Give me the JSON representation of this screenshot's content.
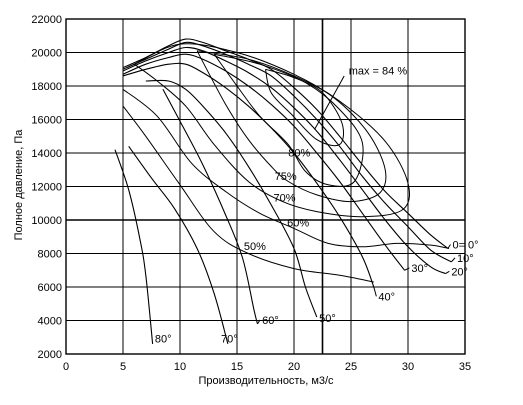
{
  "chart_data": {
    "type": "line",
    "title": "",
    "xlabel": "Производительность, м3/с",
    "ylabel": "Полное давление, Па",
    "xlim": [
      0,
      35
    ],
    "ylim": [
      2000,
      22000
    ],
    "x_ticks": [
      0,
      5,
      10,
      15,
      20,
      25,
      30,
      35
    ],
    "y_ticks": [
      2000,
      4000,
      6000,
      8000,
      10000,
      12000,
      14000,
      16000,
      18000,
      20000,
      22000
    ],
    "x_tick_labels": [
      "0",
      "5",
      "10",
      "15",
      "20",
      "25",
      "30",
      "35"
    ],
    "y_tick_labels": [
      "2000",
      "4000",
      "6000",
      "8000",
      "10000",
      "12000",
      "14000",
      "16000",
      "18000",
      "20000",
      "22000"
    ],
    "grid": true,
    "series": [
      {
        "name": "0= 0°",
        "label_at": [
          33.9,
          8300
        ],
        "points": [
          [
            5.0,
            19100
          ],
          [
            7.0,
            19700
          ],
          [
            9.0,
            20400
          ],
          [
            10.5,
            20800
          ],
          [
            12.0,
            20600
          ],
          [
            14.0,
            20100
          ],
          [
            16.0,
            19600
          ],
          [
            18.0,
            19000
          ],
          [
            20.0,
            17900
          ],
          [
            22.0,
            16600
          ],
          [
            24.0,
            15000
          ],
          [
            26.0,
            13300
          ],
          [
            28.0,
            11700
          ],
          [
            30.0,
            10400
          ],
          [
            32.0,
            9100
          ],
          [
            33.5,
            8300
          ]
        ]
      },
      {
        "name": "10°",
        "label_at": [
          34.3,
          7500
        ],
        "points": [
          [
            5.0,
            19000
          ],
          [
            7.0,
            19600
          ],
          [
            9.0,
            20200
          ],
          [
            10.5,
            20600
          ],
          [
            12.0,
            20400
          ],
          [
            14.0,
            19900
          ],
          [
            16.0,
            19300
          ],
          [
            18.0,
            18600
          ],
          [
            20.0,
            17400
          ],
          [
            22.0,
            16000
          ],
          [
            24.0,
            14400
          ],
          [
            26.0,
            12600
          ],
          [
            28.0,
            11000
          ],
          [
            30.0,
            9600
          ],
          [
            32.0,
            8200
          ],
          [
            33.8,
            7500
          ]
        ]
      },
      {
        "name": "20°",
        "label_at": [
          33.8,
          6700
        ],
        "points": [
          [
            5.0,
            18900
          ],
          [
            7.0,
            19500
          ],
          [
            9.0,
            20000
          ],
          [
            10.5,
            20300
          ],
          [
            12.0,
            20100
          ],
          [
            14.0,
            19500
          ],
          [
            16.0,
            18800
          ],
          [
            18.0,
            17900
          ],
          [
            20.0,
            16700
          ],
          [
            22.0,
            15300
          ],
          [
            24.0,
            13600
          ],
          [
            26.0,
            11800
          ],
          [
            28.0,
            10000
          ],
          [
            30.0,
            8400
          ],
          [
            32.0,
            7200
          ],
          [
            33.3,
            6800
          ]
        ]
      },
      {
        "name": "30°",
        "label_at": [
          30.3,
          6900
        ],
        "points": [
          [
            5.0,
            18700
          ],
          [
            7.0,
            19300
          ],
          [
            9.0,
            19700
          ],
          [
            10.5,
            19900
          ],
          [
            12.0,
            19600
          ],
          [
            14.0,
            18900
          ],
          [
            16.0,
            18000
          ],
          [
            18.0,
            16900
          ],
          [
            20.0,
            15600
          ],
          [
            22.0,
            14000
          ],
          [
            24.0,
            12300
          ],
          [
            26.0,
            10400
          ],
          [
            28.0,
            8500
          ],
          [
            29.7,
            7000
          ]
        ]
      },
      {
        "name": "40°",
        "label_at": [
          27.4,
          5200
        ],
        "points": [
          [
            5.0,
            18600
          ],
          [
            7.0,
            19000
          ],
          [
            9.0,
            19300
          ],
          [
            10.5,
            19300
          ],
          [
            12.0,
            18800
          ],
          [
            14.0,
            17900
          ],
          [
            16.0,
            16800
          ],
          [
            18.0,
            15500
          ],
          [
            20.0,
            14000
          ],
          [
            22.0,
            12200
          ],
          [
            24.0,
            10200
          ],
          [
            26.0,
            7800
          ],
          [
            27.0,
            6000
          ]
        ]
      },
      {
        "name": "50°",
        "label_at": [
          22.2,
          3900
        ],
        "points": [
          [
            7.0,
            18300
          ],
          [
            9.0,
            18300
          ],
          [
            10.5,
            17800
          ],
          [
            12.0,
            16800
          ],
          [
            14.0,
            15200
          ],
          [
            16.0,
            13200
          ],
          [
            18.0,
            10900
          ],
          [
            20.0,
            8300
          ],
          [
            21.0,
            6000
          ],
          [
            22.0,
            4200
          ]
        ]
      },
      {
        "name": "60°",
        "label_at": [
          17.2,
          3800
        ],
        "points": [
          [
            8.5,
            17800
          ],
          [
            10.0,
            15900
          ],
          [
            12.0,
            13300
          ],
          [
            14.0,
            10300
          ],
          [
            15.5,
            7700
          ],
          [
            16.5,
            4600
          ],
          [
            16.8,
            3800
          ]
        ]
      },
      {
        "name": "70°",
        "label_at": [
          13.6,
          2700
        ],
        "points": [
          [
            5.5,
            14400
          ],
          [
            7.5,
            12500
          ],
          [
            9.5,
            10700
          ],
          [
            11.5,
            8300
          ],
          [
            13.0,
            5600
          ],
          [
            14.2,
            2600
          ]
        ]
      },
      {
        "name": "80°",
        "label_at": [
          7.8,
          2700
        ],
        "points": [
          [
            4.3,
            14200
          ],
          [
            5.5,
            11800
          ],
          [
            6.5,
            8800
          ],
          [
            7.0,
            6700
          ],
          [
            7.6,
            2600
          ]
        ]
      }
    ],
    "efficiency_contours": [
      {
        "name": "max = 84 %",
        "label_at": [
          24.8,
          18700
        ],
        "leader": [
          [
            24.4,
            18600
          ],
          [
            21.8,
            15400
          ]
        ],
        "points": [
          [
            17.5,
            19000
          ],
          [
            20.0,
            18500
          ],
          [
            22.5,
            17600
          ],
          [
            24.2,
            15800
          ],
          [
            24.0,
            14500
          ],
          [
            22.0,
            14800
          ],
          [
            19.8,
            16300
          ],
          [
            18.0,
            17600
          ],
          [
            17.5,
            19000
          ]
        ]
      },
      {
        "name": "80%",
        "label_at": [
          19.5,
          13800
        ],
        "points": [
          [
            13.0,
            19900
          ],
          [
            17.0,
            19300
          ],
          [
            21.0,
            18200
          ],
          [
            24.0,
            16600
          ],
          [
            26.0,
            14600
          ],
          [
            25.3,
            12300
          ],
          [
            23.0,
            12100
          ],
          [
            21.0,
            12900
          ],
          [
            19.5,
            14500
          ],
          [
            17.0,
            16200
          ],
          [
            15.0,
            18000
          ],
          [
            13.0,
            19900
          ]
        ]
      },
      {
        "name": "75%",
        "label_at": [
          18.3,
          12400
        ],
        "points": [
          [
            11.5,
            20100
          ],
          [
            16.0,
            19600
          ],
          [
            20.0,
            18600
          ],
          [
            23.5,
            17300
          ],
          [
            26.5,
            15200
          ],
          [
            28.0,
            13000
          ],
          [
            27.5,
            11600
          ],
          [
            25.0,
            11100
          ],
          [
            22.0,
            11500
          ],
          [
            19.5,
            12300
          ],
          [
            18.0,
            13200
          ],
          [
            16.0,
            14800
          ],
          [
            14.0,
            16900
          ],
          [
            11.5,
            20100
          ]
        ]
      },
      {
        "name": "70%",
        "label_at": [
          18.2,
          11100
        ],
        "points": [
          [
            6.0,
            19300
          ],
          [
            10.0,
            20500
          ],
          [
            15.0,
            20000
          ],
          [
            20.0,
            18700
          ],
          [
            24.0,
            17100
          ],
          [
            28.0,
            14700
          ],
          [
            30.0,
            12200
          ],
          [
            29.5,
            10600
          ],
          [
            26.0,
            10200
          ],
          [
            22.0,
            10500
          ],
          [
            19.0,
            11100
          ],
          [
            16.0,
            12300
          ],
          [
            13.0,
            14500
          ],
          [
            10.5,
            16800
          ],
          [
            8.0,
            18300
          ],
          [
            6.0,
            19300
          ]
        ]
      },
      {
        "name": "60%",
        "label_at": [
          19.4,
          9600
        ],
        "points": [
          [
            5.0,
            17800
          ],
          [
            8.0,
            16200
          ],
          [
            11.0,
            13400
          ],
          [
            14.0,
            11700
          ],
          [
            17.0,
            10400
          ],
          [
            20.0,
            9500
          ],
          [
            23.0,
            8600
          ],
          [
            26.0,
            8400
          ],
          [
            29.0,
            8600
          ],
          [
            32.0,
            8500
          ],
          [
            33.6,
            8300
          ]
        ]
      },
      {
        "name": "50%",
        "label_at": [
          15.6,
          8200
        ],
        "points": [
          [
            5.0,
            16800
          ],
          [
            7.0,
            15000
          ],
          [
            10.0,
            12100
          ],
          [
            13.0,
            9300
          ],
          [
            16.0,
            8000
          ],
          [
            20.0,
            7100
          ],
          [
            24.0,
            6700
          ],
          [
            27.0,
            6300
          ]
        ]
      }
    ]
  }
}
